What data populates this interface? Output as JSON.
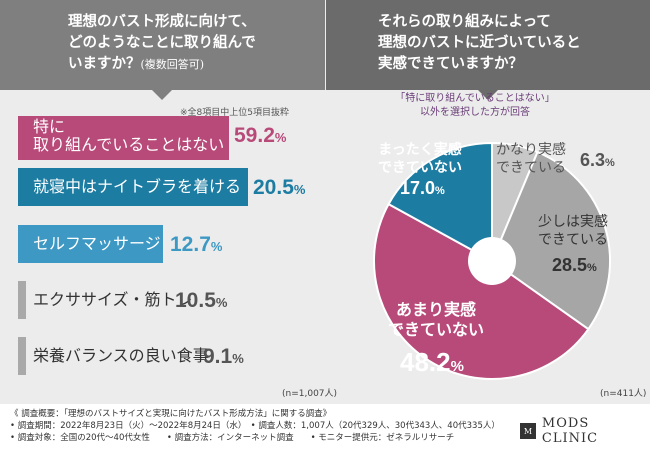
{
  "left": {
    "question": [
      "理想のバスト形成に向けて、",
      "どのようなことに取り組んで",
      "いますか？"
    ],
    "question_sub": "(複数回答可)",
    "note": "※全8項目中上位5項目抜粋",
    "n": "(n=1,007人)"
  },
  "right": {
    "question": [
      "それらの取り組みによって",
      "理想のバストに近づいていると",
      "実感できていますか？"
    ],
    "note_line1": "「特に取り組んでいることはない」",
    "note_line2": "以外を選択した方が回答",
    "n": "(n=411人)"
  },
  "chart_data": [
    {
      "type": "bar",
      "categories": [
        "特に取り組んでいることはない",
        "就寝中はナイトブラを着ける",
        "セルフマッサージ",
        "エクササイズ・筋トレ",
        "栄養バランスの良い食事"
      ],
      "category_lines": [
        [
          "特に",
          "取り組んでいることはない"
        ],
        [
          "就寝中はナイトブラを着ける"
        ],
        [
          "セルフマッサージ"
        ],
        [
          "エクササイズ・筋トレ"
        ],
        [
          "栄養バランスの良い食事"
        ]
      ],
      "values": [
        59.2,
        20.5,
        12.7,
        10.5,
        9.1
      ],
      "value_labels": [
        "59.2",
        "20.5",
        "12.7",
        "10.5",
        "9.1"
      ],
      "unit": "%",
      "colors": [
        "#b84a7a",
        "#1d7ca2",
        "#3d98c3",
        "#a9a9a9",
        "#a9a9a9"
      ]
    },
    {
      "type": "pie",
      "labels": [
        "かなり実感できている",
        "少しは実感できている",
        "あまり実感できていない",
        "まったく実感できていない"
      ],
      "label_lines": [
        [
          "かなり実感",
          "できている"
        ],
        [
          "少しは実感",
          "できている"
        ],
        [
          "あまり実感",
          "できていない"
        ],
        [
          "まったく実感",
          "できていない"
        ]
      ],
      "values": [
        6.3,
        28.5,
        48.2,
        17.0
      ],
      "value_labels": [
        "6.3",
        "28.5",
        "48.2",
        "17.0"
      ],
      "unit": "%",
      "colors": [
        "#c8c8c8",
        "#a6a6a6",
        "#b84a7a",
        "#1d7ca2"
      ]
    }
  ],
  "footer": {
    "line1": "《 調査概要：「理想のバストサイズと実現に向けたバスト形成方法」に関する調査》",
    "line2": "• 調査期間：2022年8月23日（火）～2022年8月24日（水）　• 調査人数：1,007人（20代329人、30代343人、40代335人）",
    "line3": "• 調査対象：全国の20代～40代女性　　• 調査方法：インターネット調査　　• モニター提供元：ゼネラルリサーチ"
  },
  "logo": {
    "mark": "M",
    "text": "MODS CLINIC"
  }
}
